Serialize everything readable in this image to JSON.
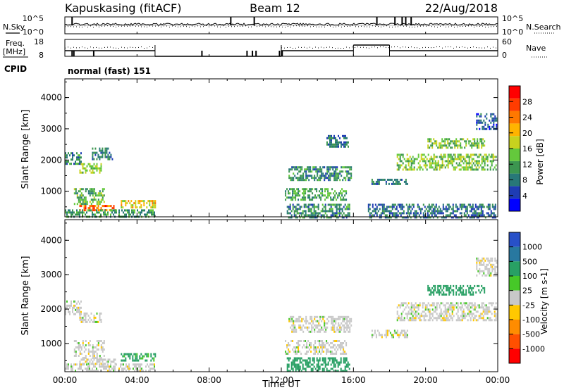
{
  "header": {
    "station": "Kapuskasing (fitACF)",
    "beam": "Beam 12",
    "date": "22/Aug/2018"
  },
  "noise_panel": {
    "left_label": "N.Sky",
    "right_label": "N.Search",
    "left_ticks": [
      "10^5",
      "10^0"
    ],
    "right_ticks": [
      "10^5",
      "10^0"
    ]
  },
  "freq_panel": {
    "left_label_line1": "Freq.",
    "left_label_line2": "[MHz]",
    "right_label": "Nave",
    "left_ticks": [
      "18",
      "8"
    ],
    "right_ticks": [
      "60",
      "0"
    ]
  },
  "cpid": {
    "label": "CPID",
    "value": "normal (fast) 151"
  },
  "chart_data": [
    {
      "type": "heatmap",
      "name_hint": "power",
      "ylabel": "Slant Range [km]",
      "xlabel": "",
      "ylim": [
        180,
        4600
      ],
      "yticks": [
        "1000",
        "2000",
        "3000",
        "4000"
      ],
      "colorbar": {
        "label": "Power [dB]",
        "ticks": [
          "4",
          "8",
          "12",
          "16",
          "20",
          "24",
          "28"
        ],
        "colors": [
          "#0000ff",
          "#1e3cb4",
          "#287878",
          "#3c9650",
          "#64c83c",
          "#c8d21e",
          "#ffb400",
          "#ff7800",
          "#ff3c00",
          "#ff0000"
        ]
      },
      "regions": [
        {
          "t": [
            0.0,
            0.9
          ],
          "r": [
            1850,
            2250
          ],
          "v": 9
        },
        {
          "t": [
            0.8,
            2.0
          ],
          "r": [
            1600,
            1900
          ],
          "v": 14
        },
        {
          "t": [
            1.5,
            2.6
          ],
          "r": [
            2000,
            2400
          ],
          "v": 8
        },
        {
          "t": [
            0.5,
            2.2
          ],
          "r": [
            600,
            1100
          ],
          "v": 12
        },
        {
          "t": [
            0.8,
            2.8
          ],
          "r": [
            380,
            560
          ],
          "v": 24
        },
        {
          "t": [
            3.1,
            5.0
          ],
          "r": [
            480,
            720
          ],
          "v": 18
        },
        {
          "t": [
            0.0,
            5.0
          ],
          "r": [
            180,
            420
          ],
          "v": 10
        },
        {
          "t": [
            12.2,
            15.6
          ],
          "r": [
            700,
            1100
          ],
          "v": 11
        },
        {
          "t": [
            12.4,
            15.9
          ],
          "r": [
            1350,
            1800
          ],
          "v": 9
        },
        {
          "t": [
            12.3,
            15.8
          ],
          "r": [
            180,
            600
          ],
          "v": 9
        },
        {
          "t": [
            14.5,
            15.7
          ],
          "r": [
            2400,
            2800
          ],
          "v": 8
        },
        {
          "t": [
            17.0,
            19.0
          ],
          "r": [
            1200,
            1400
          ],
          "v": 8
        },
        {
          "t": [
            18.4,
            23.9
          ],
          "r": [
            1700,
            2200
          ],
          "v": 14
        },
        {
          "t": [
            20.1,
            23.3
          ],
          "r": [
            2400,
            2700
          ],
          "v": 13
        },
        {
          "t": [
            22.8,
            23.9
          ],
          "r": [
            3000,
            3500
          ],
          "v": 6
        },
        {
          "t": [
            16.8,
            23.9
          ],
          "r": [
            180,
            600
          ],
          "v": 7
        }
      ]
    },
    {
      "type": "heatmap",
      "name_hint": "velocity",
      "ylabel": "Slant Range [km]",
      "xlabel": "Time UT",
      "ylim": [
        180,
        4600
      ],
      "yticks": [
        "1000",
        "2000",
        "3000",
        "4000"
      ],
      "xticks": [
        "00:00",
        "04:00",
        "08:00",
        "12:00",
        "16:00",
        "20:00",
        "00:00"
      ],
      "xlim": [
        0,
        24
      ],
      "colorbar": {
        "label": "Velocity [m s-1]",
        "ticks": [
          "1000",
          "500",
          "100",
          "25",
          "-25",
          "-100",
          "-500",
          "-1000"
        ],
        "colors": [
          "#2850c8",
          "#2878a0",
          "#28a064",
          "#46c828",
          "#c8c8c8",
          "#ffc800",
          "#ff8c00",
          "#ff5000",
          "#ff0000"
        ]
      },
      "regions": [
        {
          "t": [
            0.0,
            0.9
          ],
          "r": [
            1850,
            2250
          ],
          "v": 0
        },
        {
          "t": [
            0.8,
            2.0
          ],
          "r": [
            1600,
            1900
          ],
          "v": 0
        },
        {
          "t": [
            0.5,
            2.2
          ],
          "r": [
            600,
            1100
          ],
          "v": 0
        },
        {
          "t": [
            0.8,
            2.8
          ],
          "r": [
            380,
            560
          ],
          "v": 0
        },
        {
          "t": [
            3.1,
            5.0
          ],
          "r": [
            480,
            720
          ],
          "v": 80
        },
        {
          "t": [
            0.0,
            5.0
          ],
          "r": [
            180,
            420
          ],
          "v": 0
        },
        {
          "t": [
            12.2,
            15.6
          ],
          "r": [
            700,
            1100
          ],
          "v": 0
        },
        {
          "t": [
            12.4,
            15.9
          ],
          "r": [
            1350,
            1800
          ],
          "v": 0
        },
        {
          "t": [
            12.3,
            15.8
          ],
          "r": [
            180,
            600
          ],
          "v": 120
        },
        {
          "t": [
            17.0,
            19.0
          ],
          "r": [
            1200,
            1400
          ],
          "v": 0
        },
        {
          "t": [
            18.4,
            23.9
          ],
          "r": [
            1700,
            2200
          ],
          "v": 0
        },
        {
          "t": [
            20.1,
            23.3
          ],
          "r": [
            2400,
            2700
          ],
          "v": 150
        },
        {
          "t": [
            22.8,
            23.9
          ],
          "r": [
            3000,
            3500
          ],
          "v": 0
        }
      ]
    }
  ]
}
